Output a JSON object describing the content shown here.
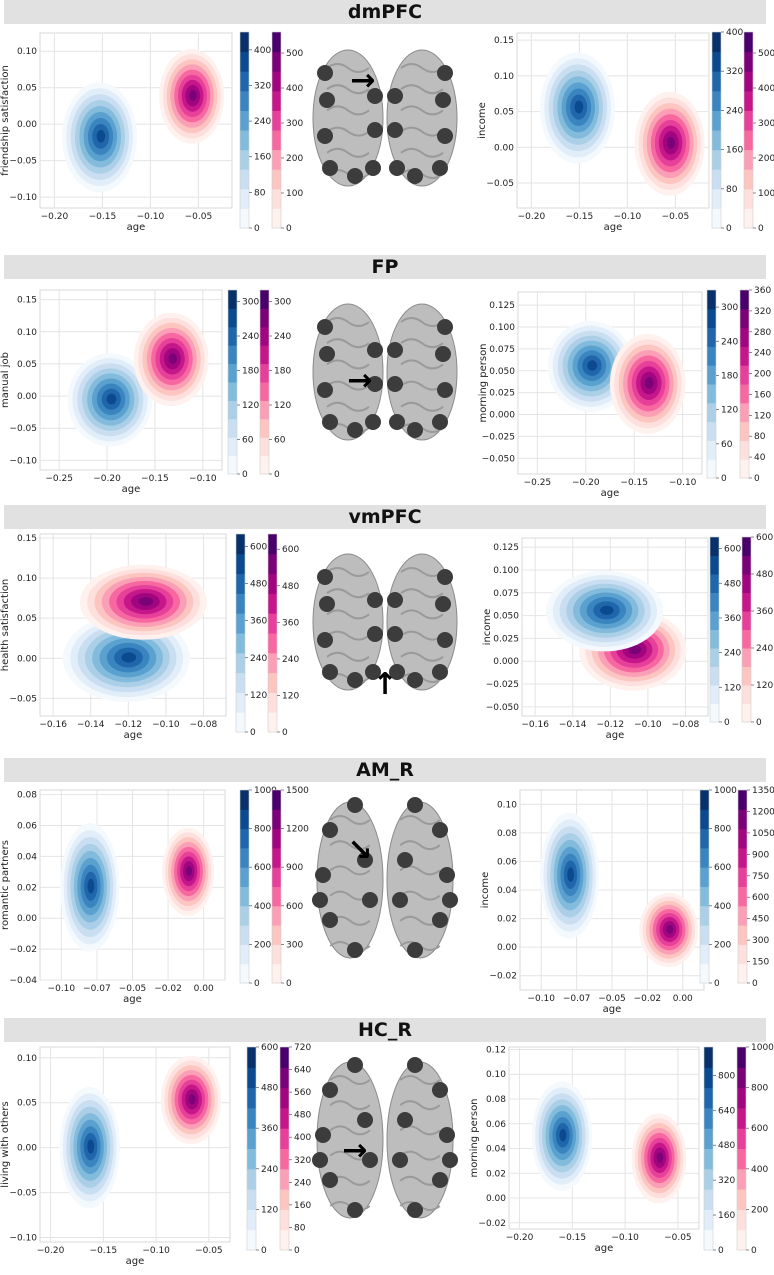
{
  "colors": {
    "blues": [
      "#f4f9fe",
      "#e1edf8",
      "#cadef1",
      "#aacfe6",
      "#82bbdb",
      "#5aa1cf",
      "#3a84c0",
      "#2066ab",
      "#0c4a90",
      "#08306b"
    ],
    "purples": [
      "#fff1ee",
      "#fde0dd",
      "#fcc5c0",
      "#fa9fb5",
      "#f768a1",
      "#e6409a",
      "#c5168a",
      "#a1057f",
      "#7a0177",
      "#49006a"
    ],
    "band": "#e1e1e1",
    "grid": "#e4e4e4",
    "brain": "#bdbdbd",
    "node": "#3c3c3c"
  },
  "sections": [
    {
      "title": "dmPFC",
      "brain_view": "frontal",
      "arrow": "→"
    },
    {
      "title": "FP",
      "brain_view": "frontal",
      "arrow": "→"
    },
    {
      "title": "vmPFC",
      "brain_view": "frontal",
      "arrow": "↑"
    },
    {
      "title": "AM_R",
      "brain_view": "ventral",
      "arrow": "↘"
    },
    {
      "title": "HC_R",
      "brain_view": "ventral",
      "arrow": "→"
    }
  ],
  "chart_data": [
    {
      "type": "density",
      "section": "dmPFC",
      "xlabel": "age",
      "ylabel": "friendship satisfaction",
      "xlim": [
        -0.215,
        -0.015
      ],
      "ylim": [
        -0.115,
        0.125
      ],
      "xticks": [
        -0.2,
        -0.15,
        -0.1,
        -0.05
      ],
      "xtick_labels": [
        "−0.20",
        "−0.15",
        "−0.10",
        "−0.05"
      ],
      "yticks": [
        -0.1,
        -0.05,
        0.0,
        0.05,
        0.1
      ],
      "ytick_labels": [
        "−0.10",
        "−0.05",
        "0.00",
        "0.05",
        "0.10"
      ],
      "series": [
        {
          "palette": "blues",
          "cx": -0.153,
          "cy": -0.018,
          "sx": 0.015,
          "sy": 0.029
        },
        {
          "palette": "purples",
          "cx": -0.057,
          "cy": 0.038,
          "sx": 0.013,
          "sy": 0.025
        }
      ],
      "colorbars": [
        {
          "palette": "blues",
          "max": 440,
          "tick_labels": [
            "0",
            "80",
            "160",
            "240",
            "320",
            "400"
          ],
          "tick_values": [
            0,
            80,
            160,
            240,
            320,
            400
          ]
        },
        {
          "palette": "purples",
          "max": 560,
          "tick_labels": [
            "0",
            "100",
            "200",
            "300",
            "400",
            "500"
          ],
          "tick_values": [
            0,
            100,
            200,
            300,
            400,
            500
          ]
        }
      ]
    },
    {
      "type": "density",
      "section": "dmPFC",
      "xlabel": "age",
      "ylabel": "income",
      "xlim": [
        -0.215,
        -0.015
      ],
      "ylim": [
        -0.085,
        0.16
      ],
      "xticks": [
        -0.2,
        -0.15,
        -0.1,
        -0.05
      ],
      "xtick_labels": [
        "−0.20",
        "−0.15",
        "−0.10",
        "−0.05"
      ],
      "yticks": [
        -0.05,
        0.0,
        0.05,
        0.1,
        0.15
      ],
      "ytick_labels": [
        "−0.05",
        "0.00",
        "0.05",
        "0.10",
        "0.15"
      ],
      "series": [
        {
          "palette": "blues",
          "cx": -0.152,
          "cy": 0.055,
          "sx": 0.015,
          "sy": 0.03
        },
        {
          "palette": "purples",
          "cx": -0.056,
          "cy": 0.005,
          "sx": 0.014,
          "sy": 0.028
        }
      ],
      "colorbars": [
        {
          "palette": "blues",
          "max": 400,
          "tick_labels": [
            "0",
            "80",
            "160",
            "240",
            "320",
            "400"
          ],
          "tick_values": [
            0,
            80,
            160,
            240,
            320,
            400
          ]
        },
        {
          "palette": "purples",
          "max": 560,
          "tick_labels": [
            "0",
            "100",
            "200",
            "300",
            "400",
            "500"
          ],
          "tick_values": [
            0,
            100,
            200,
            300,
            400,
            500
          ]
        }
      ]
    },
    {
      "type": "density",
      "section": "FP",
      "xlabel": "age",
      "ylabel": "manual job",
      "xlim": [
        -0.27,
        -0.08
      ],
      "ylim": [
        -0.115,
        0.165
      ],
      "xticks": [
        -0.25,
        -0.2,
        -0.15,
        -0.1
      ],
      "xtick_labels": [
        "−0.25",
        "−0.20",
        "−0.15",
        "−0.10"
      ],
      "yticks": [
        -0.1,
        -0.05,
        0.0,
        0.05,
        0.1,
        0.15
      ],
      "ytick_labels": [
        "−0.10",
        "−0.05",
        "0.00",
        "0.05",
        "0.10",
        "0.15"
      ],
      "series": [
        {
          "palette": "blues",
          "cx": -0.197,
          "cy": -0.006,
          "sx": 0.017,
          "sy": 0.028
        },
        {
          "palette": "purples",
          "cx": -0.133,
          "cy": 0.057,
          "sx": 0.015,
          "sy": 0.028
        }
      ],
      "colorbars": [
        {
          "palette": "blues",
          "max": 320,
          "tick_labels": [
            "0",
            "60",
            "120",
            "180",
            "240",
            "300"
          ],
          "tick_values": [
            0,
            60,
            120,
            180,
            240,
            300
          ]
        },
        {
          "palette": "purples",
          "max": 320,
          "tick_labels": [
            "0",
            "60",
            "120",
            "180",
            "240",
            "300"
          ],
          "tick_values": [
            0,
            60,
            120,
            180,
            240,
            300
          ]
        }
      ]
    },
    {
      "type": "density",
      "section": "FP",
      "xlabel": "age",
      "ylabel": "morning person",
      "xlim": [
        -0.27,
        -0.08
      ],
      "ylim": [
        -0.068,
        0.14
      ],
      "xticks": [
        -0.25,
        -0.2,
        -0.15,
        -0.1
      ],
      "xtick_labels": [
        "−0.25",
        "−0.20",
        "−0.15",
        "−0.10"
      ],
      "yticks": [
        -0.05,
        -0.025,
        0.0,
        0.025,
        0.05,
        0.075,
        0.1,
        0.125
      ],
      "ytick_labels": [
        "−0.050",
        "−0.025",
        "0.000",
        "0.025",
        "0.050",
        "0.075",
        "0.100",
        "0.125"
      ],
      "series": [
        {
          "palette": "blues",
          "cx": -0.195,
          "cy": 0.055,
          "sx": 0.017,
          "sy": 0.02
        },
        {
          "palette": "purples",
          "cx": -0.136,
          "cy": 0.035,
          "sx": 0.015,
          "sy": 0.022
        }
      ],
      "colorbars": [
        {
          "palette": "blues",
          "max": 330,
          "tick_labels": [
            "0",
            "60",
            "120",
            "180",
            "240",
            "300"
          ],
          "tick_values": [
            0,
            60,
            120,
            180,
            240,
            300
          ]
        },
        {
          "palette": "purples",
          "max": 360,
          "tick_labels": [
            "0",
            "40",
            "80",
            "120",
            "160",
            "200",
            "240",
            "280",
            "320",
            "360"
          ],
          "tick_values": [
            0,
            40,
            80,
            120,
            160,
            200,
            240,
            280,
            320,
            360
          ]
        }
      ]
    },
    {
      "type": "density",
      "section": "vmPFC",
      "xlabel": "age",
      "ylabel": "health satisfaction",
      "xlim": [
        -0.167,
        -0.068
      ],
      "ylim": [
        -0.072,
        0.155
      ],
      "xticks": [
        -0.16,
        -0.14,
        -0.12,
        -0.1,
        -0.08
      ],
      "xtick_labels": [
        "−0.16",
        "−0.14",
        "−0.12",
        "−0.10",
        "−0.08"
      ],
      "yticks": [
        -0.05,
        0.0,
        0.05,
        0.1,
        0.15
      ],
      "ytick_labels": [
        "−0.05",
        "0.00",
        "0.05",
        "0.10",
        "0.15"
      ],
      "series": [
        {
          "palette": "blues",
          "cx": -0.121,
          "cy": 0.0,
          "sx": 0.013,
          "sy": 0.021
        },
        {
          "palette": "purples",
          "cx": -0.112,
          "cy": 0.07,
          "sx": 0.013,
          "sy": 0.018
        }
      ],
      "colorbars": [
        {
          "palette": "blues",
          "max": 640,
          "tick_labels": [
            "0",
            "120",
            "240",
            "360",
            "480",
            "600"
          ],
          "tick_values": [
            0,
            120,
            240,
            360,
            480,
            600
          ]
        },
        {
          "palette": "purples",
          "max": 650,
          "tick_labels": [
            "0",
            "120",
            "240",
            "360",
            "480",
            "600"
          ],
          "tick_values": [
            0,
            120,
            240,
            360,
            480,
            600
          ]
        }
      ]
    },
    {
      "type": "density",
      "section": "vmPFC",
      "xlabel": "age",
      "ylabel": "income",
      "xlim": [
        -0.167,
        -0.068
      ],
      "ylim": [
        -0.06,
        0.135
      ],
      "xticks": [
        -0.16,
        -0.14,
        -0.12,
        -0.1,
        -0.08
      ],
      "xtick_labels": [
        "−0.16",
        "−0.14",
        "−0.12",
        "−0.10",
        "−0.08"
      ],
      "yticks": [
        -0.05,
        -0.025,
        0.0,
        0.025,
        0.05,
        0.075,
        0.1,
        0.125
      ],
      "ytick_labels": [
        "−0.050",
        "−0.025",
        "0.000",
        "0.025",
        "0.050",
        "0.075",
        "0.100",
        "0.125"
      ],
      "series": [
        {
          "palette": "purples",
          "cx": -0.108,
          "cy": 0.012,
          "sx": 0.011,
          "sy": 0.017
        },
        {
          "palette": "blues",
          "cx": -0.123,
          "cy": 0.055,
          "sx": 0.012,
          "sy": 0.017
        }
      ],
      "colorbars": [
        {
          "palette": "blues",
          "max": 640,
          "tick_labels": [
            "0",
            "120",
            "240",
            "360",
            "480",
            "600"
          ],
          "tick_values": [
            0,
            120,
            240,
            360,
            480,
            600
          ]
        },
        {
          "palette": "purples",
          "max": 600,
          "tick_labels": [
            "0",
            "120",
            "240",
            "360",
            "480",
            "600"
          ],
          "tick_values": [
            0,
            120,
            240,
            360,
            480,
            600
          ]
        }
      ]
    },
    {
      "type": "density",
      "section": "AM_R",
      "xlabel": "age",
      "ylabel": "romantic partners",
      "xlim": [
        -0.115,
        0.015
      ],
      "ylim": [
        -0.04,
        0.083
      ],
      "xticks": [
        -0.1,
        -0.075,
        -0.05,
        -0.025,
        0.0
      ],
      "xtick_labels": [
        "−0.10",
        "−0.07",
        "−0.05",
        "−0.02",
        "0.00"
      ],
      "yticks": [
        -0.04,
        -0.02,
        0.0,
        0.02,
        0.04,
        0.06,
        0.08
      ],
      "ytick_labels": [
        "−0.04",
        "−0.02",
        "0.00",
        "0.02",
        "0.04",
        "0.06",
        "0.08"
      ],
      "series": [
        {
          "palette": "blues",
          "cx": -0.08,
          "cy": 0.02,
          "sx": 0.008,
          "sy": 0.016
        },
        {
          "palette": "purples",
          "cx": -0.011,
          "cy": 0.03,
          "sx": 0.007,
          "sy": 0.011
        }
      ],
      "colorbars": [
        {
          "palette": "blues",
          "max": 1000,
          "tick_labels": [
            "0",
            "200",
            "400",
            "600",
            "800",
            "1000"
          ],
          "tick_values": [
            0,
            200,
            400,
            600,
            800,
            1000
          ]
        },
        {
          "palette": "purples",
          "max": 1500,
          "tick_labels": [
            "0",
            "300",
            "600",
            "900",
            "1200",
            "1500"
          ],
          "tick_values": [
            0,
            300,
            600,
            900,
            1200,
            1500
          ]
        }
      ]
    },
    {
      "type": "density",
      "section": "AM_R",
      "xlabel": "age",
      "ylabel": "income",
      "xlim": [
        -0.115,
        0.015
      ],
      "ylim": [
        -0.03,
        0.11
      ],
      "xticks": [
        -0.1,
        -0.075,
        -0.05,
        -0.025,
        0.0
      ],
      "xtick_labels": [
        "−0.10",
        "−0.07",
        "−0.05",
        "−0.02",
        "0.00"
      ],
      "yticks": [
        -0.02,
        0.0,
        0.02,
        0.04,
        0.06,
        0.08,
        0.1
      ],
      "ytick_labels": [
        "−0.02",
        "0.00",
        "0.02",
        "0.04",
        "0.06",
        "0.08",
        "0.10"
      ],
      "series": [
        {
          "palette": "blues",
          "cx": -0.08,
          "cy": 0.05,
          "sx": 0.008,
          "sy": 0.017
        },
        {
          "palette": "purples",
          "cx": -0.01,
          "cy": 0.012,
          "sx": 0.008,
          "sy": 0.01
        }
      ],
      "colorbars": [
        {
          "palette": "blues",
          "max": 1000,
          "tick_labels": [
            "0",
            "200",
            "400",
            "600",
            "800",
            "1000"
          ],
          "tick_values": [
            0,
            200,
            400,
            600,
            800,
            1000
          ]
        },
        {
          "palette": "purples",
          "max": 1350,
          "tick_labels": [
            "0",
            "150",
            "300",
            "450",
            "600",
            "750",
            "900",
            "1050",
            "1200",
            "1350"
          ],
          "tick_values": [
            0,
            150,
            300,
            450,
            600,
            750,
            900,
            1050,
            1200,
            1350
          ]
        }
      ]
    },
    {
      "type": "density",
      "section": "HC_R",
      "xlabel": "age",
      "ylabel": "living with others",
      "xlim": [
        -0.21,
        -0.03
      ],
      "ylim": [
        -0.105,
        0.112
      ],
      "xticks": [
        -0.2,
        -0.15,
        -0.1,
        -0.05
      ],
      "xtick_labels": [
        "−0.20",
        "−0.15",
        "−0.10",
        "−0.05"
      ],
      "yticks": [
        -0.1,
        -0.05,
        0.0,
        0.05,
        0.1
      ],
      "ytick_labels": [
        "−0.10",
        "−0.05",
        "0.00",
        "0.05",
        "0.10"
      ],
      "series": [
        {
          "palette": "blues",
          "cx": -0.163,
          "cy": 0.0,
          "sx": 0.011,
          "sy": 0.026
        },
        {
          "palette": "purples",
          "cx": -0.067,
          "cy": 0.053,
          "sx": 0.011,
          "sy": 0.019
        }
      ],
      "colorbars": [
        {
          "palette": "blues",
          "max": 600,
          "tick_labels": [
            "0",
            "120",
            "240",
            "360",
            "480",
            "600"
          ],
          "tick_values": [
            0,
            120,
            240,
            360,
            480,
            600
          ]
        },
        {
          "palette": "purples",
          "max": 720,
          "tick_labels": [
            "0",
            "80",
            "160",
            "240",
            "320",
            "400",
            "480",
            "560",
            "640",
            "720"
          ],
          "tick_values": [
            0,
            80,
            160,
            240,
            320,
            400,
            480,
            560,
            640,
            720
          ]
        }
      ]
    },
    {
      "type": "density",
      "section": "HC_R",
      "xlabel": "age",
      "ylabel": "morning person",
      "xlim": [
        -0.21,
        -0.03
      ],
      "ylim": [
        -0.025,
        0.122
      ],
      "xticks": [
        -0.2,
        -0.15,
        -0.1,
        -0.05
      ],
      "xtick_labels": [
        "−0.20",
        "−0.15",
        "−0.10",
        "−0.05"
      ],
      "yticks": [
        -0.02,
        0.0,
        0.02,
        0.04,
        0.06,
        0.08,
        0.1,
        0.12
      ],
      "ytick_labels": [
        "−0.02",
        "0.00",
        "0.02",
        "0.04",
        "0.06",
        "0.08",
        "0.10",
        "0.12"
      ],
      "series": [
        {
          "palette": "blues",
          "cx": -0.16,
          "cy": 0.05,
          "sx": 0.011,
          "sy": 0.017
        },
        {
          "palette": "purples",
          "cx": -0.068,
          "cy": 0.032,
          "sx": 0.01,
          "sy": 0.014
        }
      ],
      "colorbars": [
        {
          "palette": "blues",
          "max": 930,
          "tick_labels": [
            "0",
            "160",
            "320",
            "480",
            "640",
            "800"
          ],
          "tick_values": [
            0,
            160,
            320,
            480,
            640,
            800
          ]
        },
        {
          "palette": "purples",
          "max": 1000,
          "tick_labels": [
            "0",
            "200",
            "400",
            "600",
            "800",
            "1000"
          ],
          "tick_values": [
            0,
            200,
            400,
            600,
            800,
            1000
          ]
        }
      ]
    }
  ]
}
